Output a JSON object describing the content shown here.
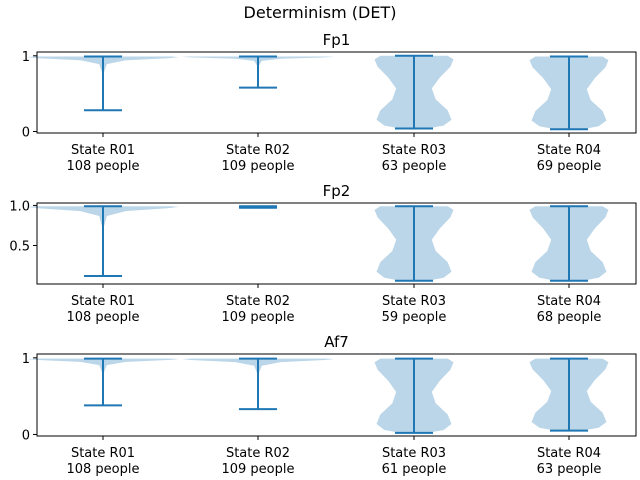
{
  "chart_data": {
    "type": "violin",
    "title": "Determinism (DET)",
    "panels": [
      {
        "title": "Fp1",
        "ylim": [
          -0.02,
          1.05
        ],
        "yticks": [
          0,
          1
        ],
        "ytick_labels": [
          "0",
          "1"
        ],
        "categories": [
          {
            "name": "State R01",
            "count": "108 people",
            "min": 0.28,
            "max": 0.99
          },
          {
            "name": "State R02",
            "count": "109 people",
            "min": 0.58,
            "max": 0.99
          },
          {
            "name": "State R03",
            "count": "63 people",
            "min": 0.04,
            "max": 1.0
          },
          {
            "name": "State R04",
            "count": "69 people",
            "min": 0.03,
            "max": 0.99
          }
        ]
      },
      {
        "title": "Fp2",
        "ylim": [
          0.02,
          1.03
        ],
        "yticks": [
          0.5,
          1.0
        ],
        "ytick_labels": [
          "0.5",
          "1.0"
        ],
        "categories": [
          {
            "name": "State R01",
            "count": "108 people",
            "min": 0.12,
            "max": 0.99
          },
          {
            "name": "State R02",
            "count": "109 people",
            "min": 0.97,
            "max": 0.99
          },
          {
            "name": "State R03",
            "count": "59 people",
            "min": 0.06,
            "max": 0.99
          },
          {
            "name": "State R04",
            "count": "68 people",
            "min": 0.06,
            "max": 0.99
          }
        ]
      },
      {
        "title": "Af7",
        "ylim": [
          -0.02,
          1.05
        ],
        "yticks": [
          0,
          1
        ],
        "ytick_labels": [
          "0",
          "1"
        ],
        "categories": [
          {
            "name": "State R01",
            "count": "108 people",
            "min": 0.38,
            "max": 0.99
          },
          {
            "name": "State R02",
            "count": "109 people",
            "min": 0.33,
            "max": 0.99
          },
          {
            "name": "State R03",
            "count": "61 people",
            "min": 0.02,
            "max": 0.99
          },
          {
            "name": "State R04",
            "count": "63 people",
            "min": 0.05,
            "max": 0.99
          }
        ]
      }
    ],
    "colors": {
      "line": "#1f77b4",
      "fill": "#1f77b4"
    }
  }
}
